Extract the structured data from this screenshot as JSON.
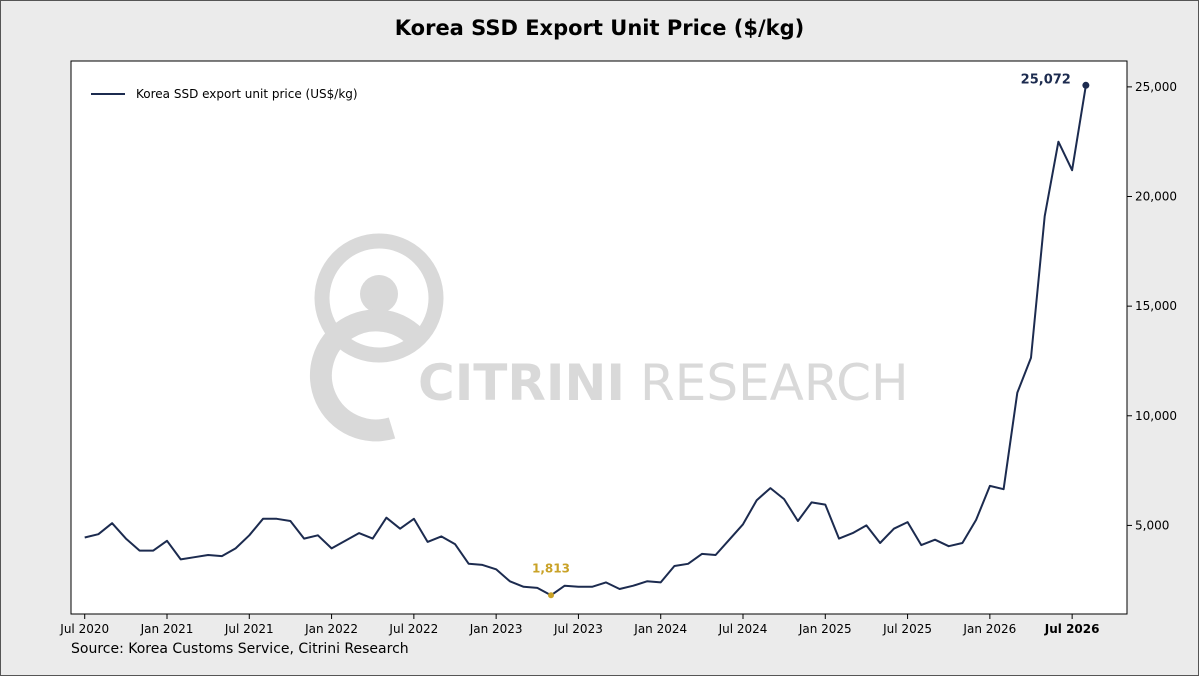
{
  "page": {
    "title": "Korea SSD Export Unit Price ($/kg)",
    "source": "Source: Korea Customs Service, Citrini Research",
    "watermark_left": "CITRINI",
    "watermark_right": "RESEARCH"
  },
  "colors": {
    "line": "#1c2b4f",
    "min_marker": "#c9a227",
    "watermark": "#d9d9d9",
    "background": "#ebebeb",
    "plot_background": "#ffffff"
  },
  "chart_data": {
    "type": "line",
    "title": "Korea SSD Export Unit Price ($/kg)",
    "xlabel": "",
    "ylabel": "",
    "y_axis_position": "right",
    "legend_position": "top-left",
    "grid": false,
    "x_tick_labels": [
      "Jul 2020",
      "Jan 2021",
      "Jul 2021",
      "Jan 2022",
      "Jul 2022",
      "Jan 2023",
      "Jul 2023",
      "Jan 2024",
      "Jul 2024",
      "Jan 2025",
      "Jul 2025",
      "Jan 2026",
      "Jul 2026"
    ],
    "x_tick_month_index": [
      0,
      6,
      12,
      18,
      24,
      30,
      36,
      42,
      48,
      54,
      60,
      66,
      72
    ],
    "y_ticks": [
      5000,
      10000,
      15000,
      20000,
      25000
    ],
    "y_tick_labels": [
      "5,000",
      "10,000",
      "15,000",
      "20,000",
      "25,000"
    ],
    "ylim": [
      960,
      26180
    ],
    "xlim_month_index": [
      -1,
      76
    ],
    "x_start": "Jul 2020",
    "series": [
      {
        "name": "Korea SSD export unit price (US$/kg)",
        "values": [
          4450,
          4600,
          5100,
          4400,
          3850,
          3850,
          4300,
          3450,
          3550,
          3650,
          3600,
          3950,
          4550,
          5300,
          5300,
          5200,
          4400,
          4550,
          3950,
          4300,
          4650,
          4400,
          5350,
          4850,
          5300,
          4250,
          4500,
          4150,
          3250,
          3200,
          3000,
          2450,
          2200,
          2150,
          1813,
          2250,
          2200,
          2200,
          2400,
          2100,
          2250,
          2450,
          2400,
          3150,
          3250,
          3700,
          3650,
          4350,
          5050,
          6150,
          6700,
          6200,
          5200,
          6050,
          5950,
          4400,
          4650,
          5000,
          4200,
          4850,
          5150,
          4100,
          4350,
          4050,
          4200,
          5250,
          6800,
          6650,
          11050,
          12650,
          19100,
          22500,
          21200,
          25072
        ]
      }
    ],
    "annotations": [
      {
        "label": "25,072",
        "month_index": 73,
        "value": 25072,
        "bold_x_tick": "Jul 2026"
      },
      {
        "label": "1,813",
        "month_index": 34,
        "value": 1813
      }
    ]
  }
}
